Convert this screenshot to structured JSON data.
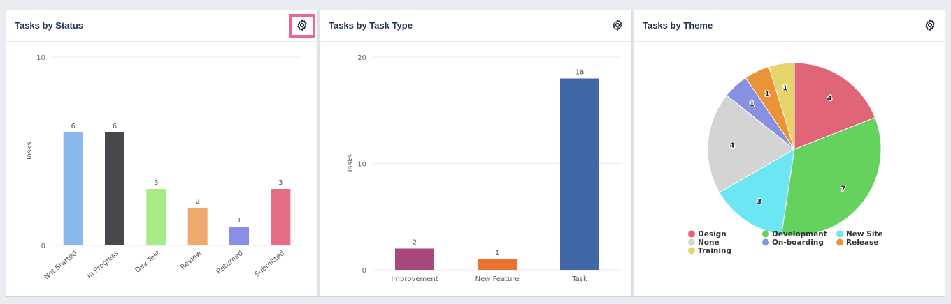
{
  "panels": {
    "status": {
      "title": "Tasks by Status",
      "settings_icon": "gear-icon",
      "chart_data": {
        "type": "bar",
        "title": "Tasks by Status",
        "ylabel": "Tasks",
        "ylim": [
          0,
          10
        ],
        "yticks": [
          0,
          10
        ],
        "categories": [
          "Not Started",
          "In Progress",
          "Dev Test",
          "Review",
          "Returned",
          "Submitted"
        ],
        "values": [
          6,
          6,
          3,
          2,
          1,
          3
        ],
        "colors": [
          "#8bb8ec",
          "#47474e",
          "#a6eb85",
          "#eeaa6e",
          "#8a8fe6",
          "#e56d85"
        ]
      }
    },
    "type": {
      "title": "Tasks by Task Type",
      "settings_icon": "gear-icon",
      "chart_data": {
        "type": "bar",
        "title": "Tasks by Task Type",
        "ylabel": "Tasks",
        "ylim": [
          0,
          20
        ],
        "yticks": [
          0,
          10,
          20
        ],
        "categories": [
          "Improvement",
          "New Feature",
          "Task"
        ],
        "values": [
          2,
          1,
          18
        ],
        "colors": [
          "#a8487c",
          "#e9722f",
          "#4068a6"
        ]
      }
    },
    "theme": {
      "title": "Tasks by Theme",
      "settings_icon": "gear-icon",
      "chart_data": {
        "type": "pie",
        "title": "Tasks by Theme",
        "slices": [
          {
            "label": "Design",
            "value": 4,
            "color": "#e06677"
          },
          {
            "label": "Development",
            "value": 7,
            "color": "#64d25c"
          },
          {
            "label": "New Site",
            "value": 3,
            "color": "#6de6f4"
          },
          {
            "label": "None",
            "value": 4,
            "color": "#d4d4d4"
          },
          {
            "label": "On-boarding",
            "value": 1,
            "color": "#8890e4"
          },
          {
            "label": "Release",
            "value": 1,
            "color": "#eb9437"
          },
          {
            "label": "Training",
            "value": 1,
            "color": "#e6d36a"
          }
        ],
        "legend_position": "bottom"
      }
    }
  },
  "highlight_color": "#f06493"
}
